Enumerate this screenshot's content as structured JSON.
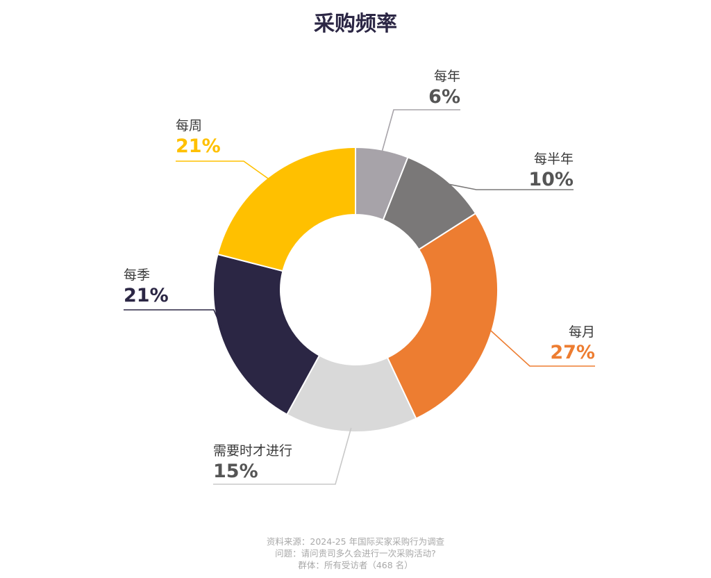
{
  "chart_data": {
    "type": "pie",
    "title": "采购频率",
    "categories": [
      "每年",
      "每半年",
      "每月",
      "需要时才进行",
      "每季",
      "每周"
    ],
    "values": [
      6,
      10,
      27,
      15,
      21,
      21
    ],
    "value_labels": [
      "6%",
      "10%",
      "27%",
      "15%",
      "21%",
      "21%"
    ],
    "colors": [
      "#a7a3a9",
      "#7a7878",
      "#ed7d31",
      "#d9d9d9",
      "#2b2644",
      "#ffc000"
    ],
    "label_colors": [
      "#555555",
      "#555555",
      "#ed7d31",
      "#555555",
      "#2b2644",
      "#ffc000"
    ],
    "style": "donut"
  },
  "footer": {
    "lines": [
      "资料来源：2024-25 年国际买家采购行为调查",
      "问题：请问贵司多久会进行一次采购活动?",
      "群体：所有受访者（468 名）"
    ]
  }
}
